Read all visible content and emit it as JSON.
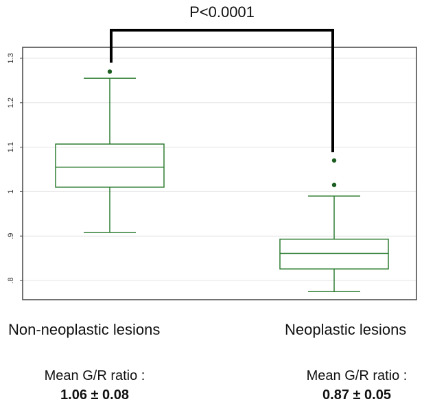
{
  "chart_data": {
    "type": "boxplot",
    "title": "",
    "xlabel": "",
    "ylabel": "",
    "ylim": [
      0.77,
      1.32
    ],
    "yticks": [
      0.8,
      0.9,
      1.0,
      1.1,
      1.2,
      1.3
    ],
    "ytick_labels": [
      ".8",
      ".9",
      "1",
      "1.1",
      "1.2",
      "1.3"
    ],
    "grid": true,
    "box_color": "#2e7d32",
    "outlier_color": "#1b5e20",
    "categories": [
      "Non-neoplastic lesions",
      "Neoplastic lesions"
    ],
    "boxes": [
      {
        "category": "Non-neoplastic lesions",
        "whisker_low": 0.908,
        "q1": 1.01,
        "median": 1.055,
        "q3": 1.107,
        "whisker_high": 1.255,
        "outliers": [
          1.27
        ]
      },
      {
        "category": "Neoplastic lesions",
        "whisker_low": 0.775,
        "q1": 0.826,
        "median": 0.861,
        "q3": 0.893,
        "whisker_high": 0.99,
        "outliers": [
          1.015,
          1.07
        ]
      }
    ],
    "annotation": {
      "text": "P<0.0001"
    },
    "summary": [
      {
        "label": "Mean G/R ratio :",
        "value": "1.06 ± 0.08"
      },
      {
        "label": "Mean G/R ratio :",
        "value": "0.87 ± 0.05"
      }
    ]
  }
}
